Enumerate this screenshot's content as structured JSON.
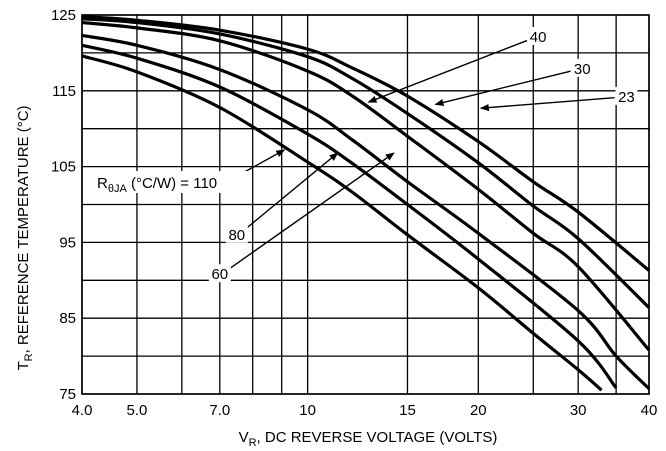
{
  "chart_data": {
    "type": "line",
    "title": "",
    "xscale": "log",
    "xlim": [
      4.0,
      40
    ],
    "ylim": [
      75,
      125
    ],
    "grid": true,
    "x_ticks": [
      {
        "value": 4.0,
        "label": "4.0"
      },
      {
        "value": 5.0,
        "label": "5.0"
      },
      {
        "value": 7.0,
        "label": "7.0"
      },
      {
        "value": 10,
        "label": "10"
      },
      {
        "value": 15,
        "label": "15"
      },
      {
        "value": 20,
        "label": "20"
      },
      {
        "value": 30,
        "label": "30"
      },
      {
        "value": 40,
        "label": "40"
      }
    ],
    "x_minor_gridlines": [
      6.0,
      8.0,
      9.0,
      25,
      35
    ],
    "y_ticks": [
      {
        "value": 125,
        "label": "125"
      },
      {
        "value": 115,
        "label": "115"
      },
      {
        "value": 105,
        "label": "105"
      },
      {
        "value": 95,
        "label": "95"
      },
      {
        "value": 85,
        "label": "85"
      },
      {
        "value": 75,
        "label": "75"
      }
    ],
    "y_minor_gridlines": [
      120,
      110,
      100,
      90,
      80
    ],
    "xlabel": {
      "main": "V",
      "sub": "R",
      "rest": ", DC REVERSE VOLTAGE (VOLTS)"
    },
    "ylabel": {
      "main": "T",
      "sub": "R",
      "rest": ", REFERENCE TEMPERATURE (°C)"
    },
    "parameter_label": {
      "main": "R",
      "sub": "θJA",
      "rest": " (°C/W) = 110"
    },
    "series": [
      {
        "name": "23",
        "points": [
          [
            4.0,
            124.8
          ],
          [
            5,
            124.3
          ],
          [
            7,
            123
          ],
          [
            10,
            120.5
          ],
          [
            12,
            118
          ],
          [
            15,
            114.3
          ],
          [
            20,
            108.3
          ],
          [
            25,
            103
          ],
          [
            30,
            99
          ],
          [
            40,
            91.3
          ]
        ]
      },
      {
        "name": "30",
        "points": [
          [
            4.0,
            124.5
          ],
          [
            5,
            124
          ],
          [
            7,
            122.5
          ],
          [
            10,
            119.5
          ],
          [
            12,
            116.6
          ],
          [
            15,
            112
          ],
          [
            20,
            105.5
          ],
          [
            25,
            99.8
          ],
          [
            30,
            95.5
          ],
          [
            40,
            86.4
          ]
        ]
      },
      {
        "name": "40",
        "points": [
          [
            4.0,
            124
          ],
          [
            5,
            123.3
          ],
          [
            7,
            121.6
          ],
          [
            10,
            117.6
          ],
          [
            12,
            114.3
          ],
          [
            15,
            109
          ],
          [
            20,
            102
          ],
          [
            25,
            96.2
          ],
          [
            30,
            91.8
          ],
          [
            40,
            80.8
          ]
        ]
      },
      {
        "name": "60",
        "points": [
          [
            4.0,
            122.3
          ],
          [
            5,
            121
          ],
          [
            7,
            117.8
          ],
          [
            10,
            112.5
          ],
          [
            12,
            108.5
          ],
          [
            15,
            103
          ],
          [
            20,
            96.2
          ],
          [
            30,
            86
          ],
          [
            35,
            80
          ],
          [
            40,
            75.7
          ]
        ]
      },
      {
        "name": "80",
        "points": [
          [
            4.0,
            121
          ],
          [
            5,
            119.3
          ],
          [
            7,
            115.5
          ],
          [
            10,
            109.3
          ],
          [
            12,
            105.4
          ],
          [
            15,
            100
          ],
          [
            20,
            92.8
          ],
          [
            30,
            82
          ],
          [
            35,
            75.8
          ]
        ]
      },
      {
        "name": "110",
        "points": [
          [
            4.0,
            119.6
          ],
          [
            5,
            117.5
          ],
          [
            7,
            112.8
          ],
          [
            10,
            105.6
          ],
          [
            12,
            101.6
          ],
          [
            15,
            96
          ],
          [
            20,
            89
          ],
          [
            25,
            83
          ],
          [
            30,
            78.2
          ],
          [
            33,
            75.5
          ]
        ]
      }
    ],
    "annotations": [
      {
        "text": "40",
        "series": "40",
        "label_at": [
          25.5,
          122.1
        ],
        "arrow_to": [
          12.8,
          113.5
        ]
      },
      {
        "text": "30",
        "series": "30",
        "label_at": [
          30.5,
          117.9
        ],
        "arrow_to": [
          16.8,
          113.2
        ]
      },
      {
        "text": "23",
        "series": "23",
        "label_at": [
          36.5,
          114.2
        ],
        "arrow_to": [
          20.2,
          112.7
        ]
      },
      {
        "text": "110",
        "series": "110",
        "label_at": [
          6.95,
          102.5
        ],
        "arrow_to": [
          9.1,
          107.2
        ]
      },
      {
        "text": "80",
        "series": "80",
        "label_at": [
          7.5,
          96.0
        ],
        "arrow_to": [
          11.3,
          106.8
        ]
      },
      {
        "text": "60",
        "series": "60",
        "label_at": [
          7.0,
          90.8
        ],
        "arrow_to": [
          14.2,
          106.8
        ]
      }
    ],
    "colors": {
      "line": "#000000",
      "grid": "#000000",
      "background": "#ffffff"
    }
  }
}
